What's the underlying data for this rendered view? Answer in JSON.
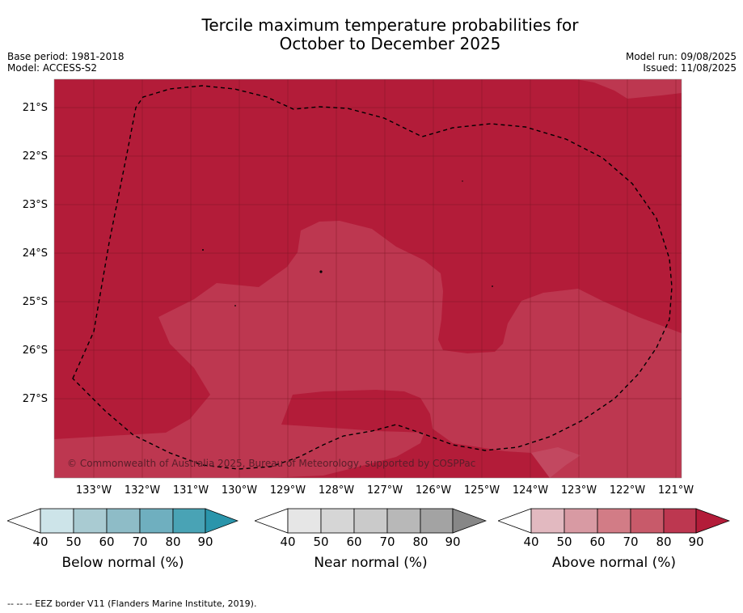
{
  "title_line1": "Tercile maximum temperature probabilities for",
  "title_line2": "October to December 2025",
  "meta_left": {
    "base_period": "Base period: 1981-2018",
    "model": "Model: ACCESS-S2"
  },
  "meta_right": {
    "model_run": "Model run: 09/08/2025",
    "issued": "Issued: 11/08/2025"
  },
  "map": {
    "lat_labels": [
      "21°S",
      "22°S",
      "23°S",
      "24°S",
      "25°S",
      "26°S",
      "27°S"
    ],
    "lon_labels": [
      "133°W",
      "132°W",
      "131°W",
      "130°W",
      "129°W",
      "128°W",
      "127°W",
      "126°W",
      "125°W",
      "124°W",
      "123°W",
      "122°W",
      "121°W"
    ],
    "copyright": "© Commonwealth of Australia 2025, Bureau of Meteorology, supported by COSPPac",
    "colors": {
      "above_80_90": "#b31c39",
      "above_70_80": "#bd3750",
      "ocean_grid": "#7a1524",
      "eez_border": "#000000"
    }
  },
  "colorbars": [
    {
      "caption": "Below normal (%)",
      "ticks": [
        "40",
        "50",
        "60",
        "70",
        "80",
        "90"
      ],
      "colors": [
        "#cde4e9",
        "#a9cbd2",
        "#8ebcc7",
        "#6fafbf",
        "#49a3b5",
        "#2a95ab"
      ]
    },
    {
      "caption": "Near normal (%)",
      "ticks": [
        "40",
        "50",
        "60",
        "70",
        "80",
        "90"
      ],
      "colors": [
        "#e6e6e6",
        "#d6d6d6",
        "#cacaca",
        "#b8b8b8",
        "#a3a3a3",
        "#878787"
      ]
    },
    {
      "caption": "Above normal (%)",
      "ticks": [
        "40",
        "50",
        "60",
        "70",
        "80",
        "90"
      ],
      "colors": [
        "#e2b9c0",
        "#d89aa3",
        "#d27c86",
        "#c85a6a",
        "#bd3750",
        "#b31c39"
      ]
    }
  ],
  "footer": "--  --  -- EEZ border V11 (Flanders Marine Institute, 2019)."
}
